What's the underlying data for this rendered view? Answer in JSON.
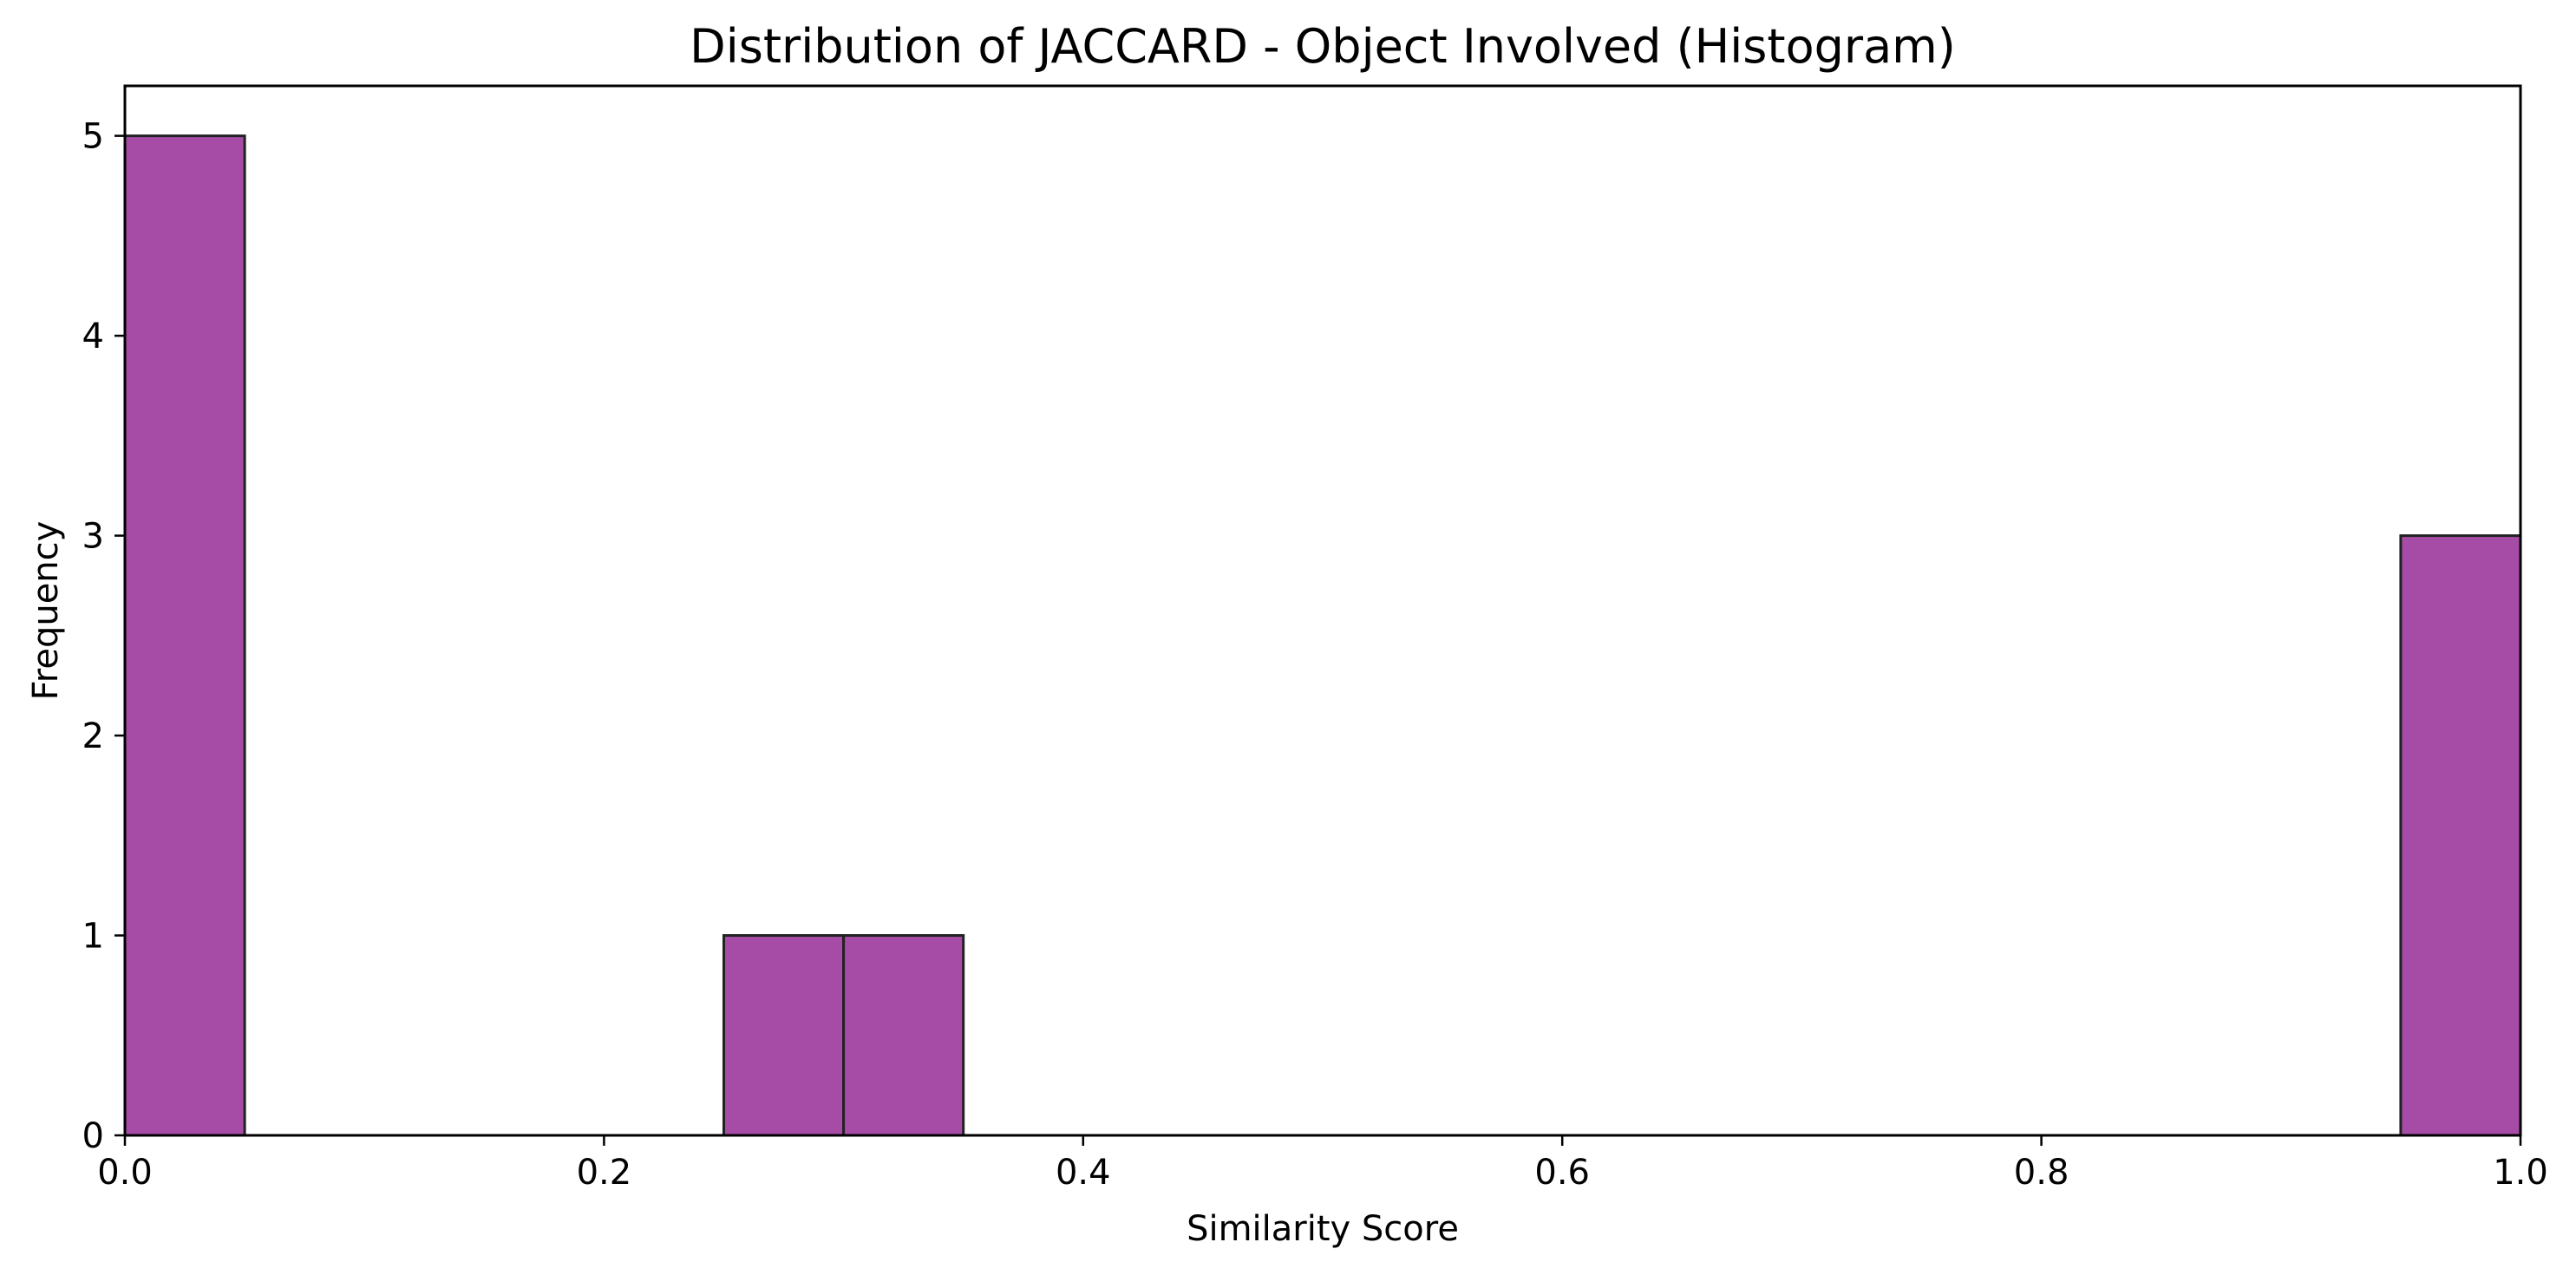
{
  "chart_data": {
    "type": "bar",
    "title": "Distribution of JACCARD - Object Involved (Histogram)",
    "xlabel": "Similarity Score",
    "ylabel": "Frequency",
    "xlim": [
      0.0,
      1.0
    ],
    "ylim": [
      0,
      5.25
    ],
    "bin_width": 0.05,
    "bars": [
      {
        "x_start": 0.0,
        "x_end": 0.05,
        "count": 5
      },
      {
        "x_start": 0.25,
        "x_end": 0.3,
        "count": 1
      },
      {
        "x_start": 0.3,
        "x_end": 0.35,
        "count": 1
      },
      {
        "x_start": 0.95,
        "x_end": 1.0,
        "count": 3
      }
    ],
    "x_ticks": [
      "0.0",
      "0.2",
      "0.4",
      "0.6",
      "0.8",
      "1.0"
    ],
    "y_ticks": [
      "0",
      "1",
      "2",
      "3",
      "4",
      "5"
    ],
    "grid": false,
    "legend": false,
    "colors": {
      "bar_fill": "#A64CA6",
      "bar_edge": "#222222",
      "axis": "#000000"
    }
  }
}
